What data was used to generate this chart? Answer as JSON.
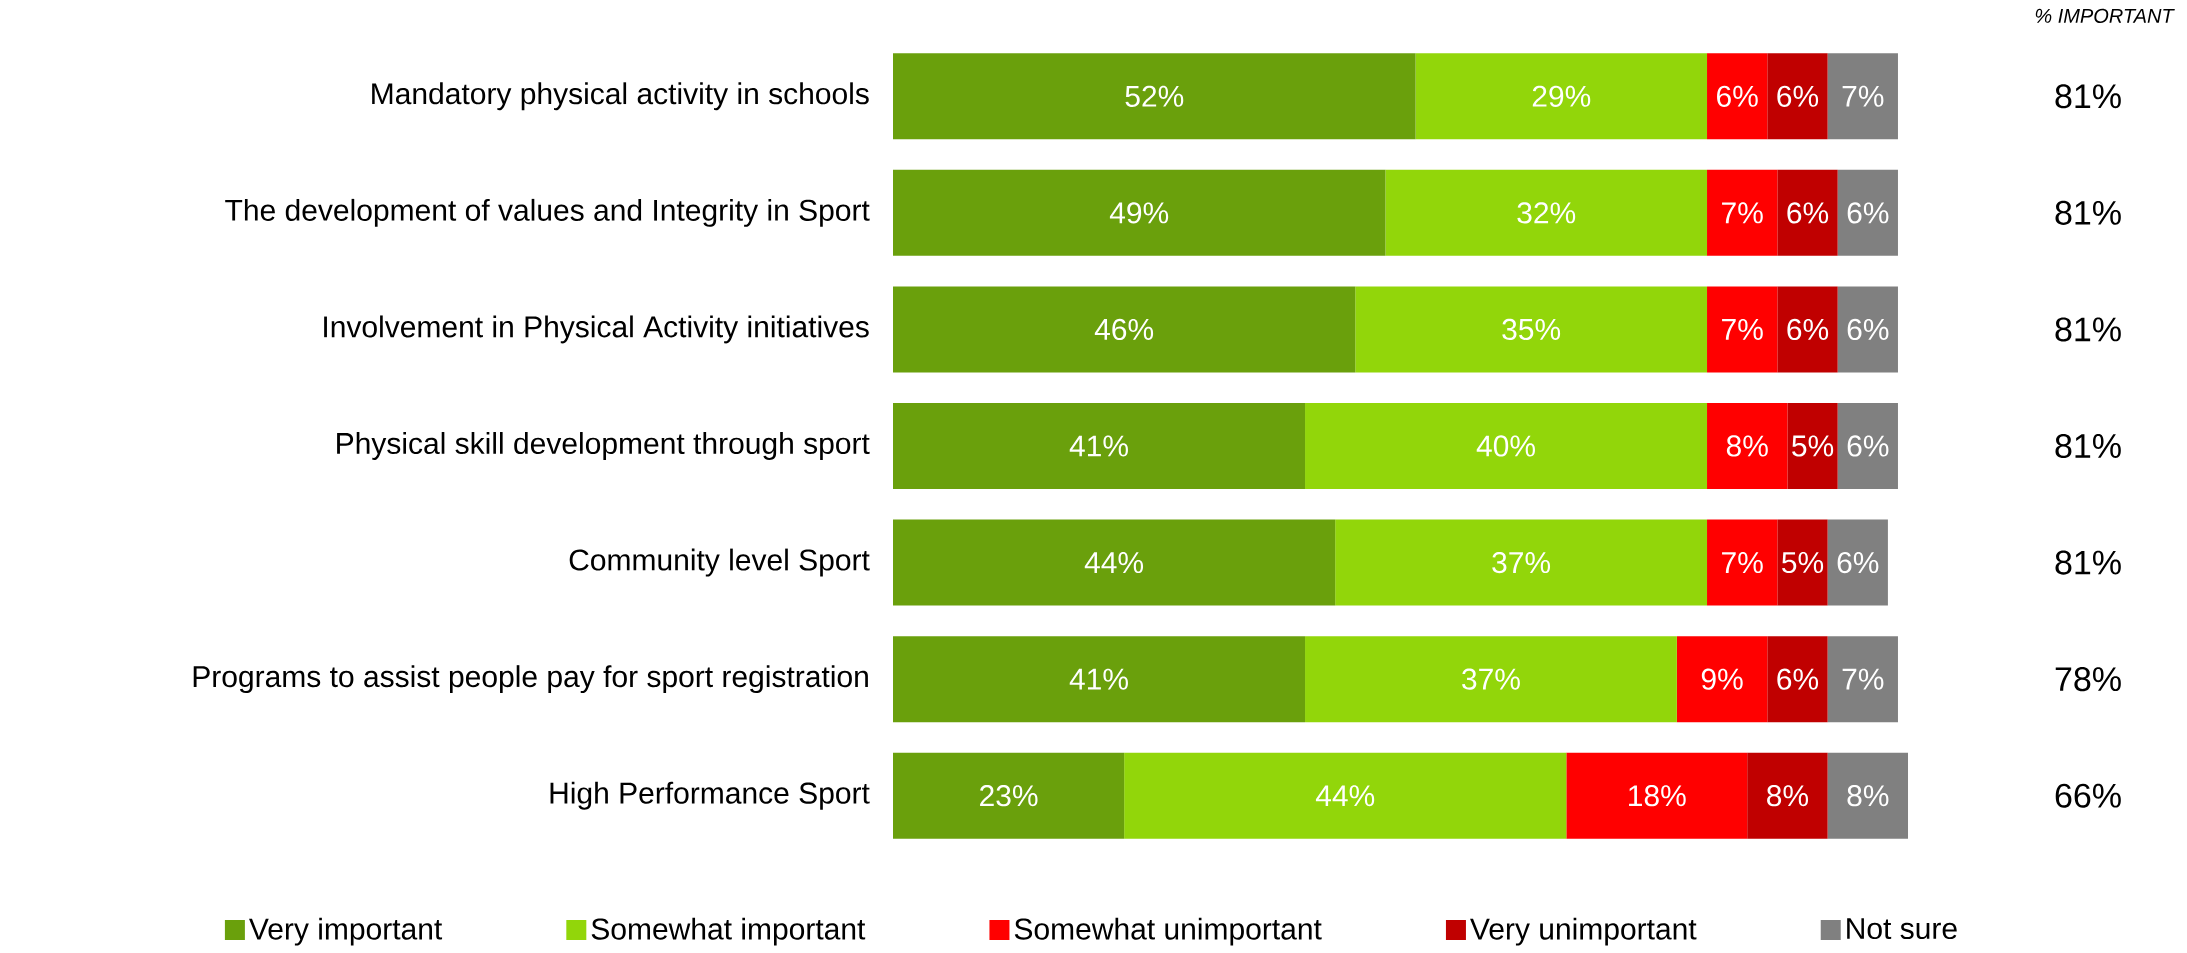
{
  "chart_data": {
    "type": "bar",
    "orientation": "horizontal",
    "stacked": true,
    "legend": "bottom",
    "categories": [
      "Mandatory physical activity in schools",
      "The development of values and Integrity in Sport",
      "Involvement in Physical Activity initiatives",
      "Physical skill development through sport",
      "Community level Sport",
      "Programs to assist people pay for sport registration",
      "High Performance Sport"
    ],
    "series": [
      {
        "name": "Very important",
        "color": "#6aa00c",
        "values": [
          52,
          49,
          46,
          41,
          44,
          41,
          23
        ],
        "value_labels": [
          "52%",
          "49%",
          "46%",
          "41%",
          "44%",
          "41%",
          "23%"
        ]
      },
      {
        "name": "Somewhat important",
        "color": "#92d60a",
        "values": [
          29,
          32,
          35,
          40,
          37,
          37,
          44
        ],
        "value_labels": [
          "29%",
          "32%",
          "35%",
          "40%",
          "37%",
          "37%",
          "44%"
        ]
      },
      {
        "name": "Somewhat unimportant",
        "color": "#ff0000",
        "values": [
          6,
          7,
          7,
          8,
          7,
          9,
          18
        ],
        "value_labels": [
          "6%",
          "7%",
          "7%",
          "8%",
          "7%",
          "9%",
          "18%"
        ]
      },
      {
        "name": "Very unimportant",
        "color": "#c00000",
        "values": [
          6,
          6,
          6,
          5,
          5,
          6,
          8
        ],
        "value_labels": [
          "6%",
          "6%",
          "6%",
          "5%",
          "5%",
          "6%",
          "8%"
        ]
      },
      {
        "name": "Not sure",
        "color": "#808080",
        "values": [
          7,
          6,
          6,
          6,
          6,
          7,
          8
        ],
        "value_labels": [
          "7%",
          "6%",
          "6%",
          "6%",
          "6%",
          "7%",
          "8%"
        ]
      }
    ],
    "annotations": [
      "% IMPORTANT",
      "81%",
      "81%",
      "81%",
      "81%",
      "81%",
      "78%",
      "66%"
    ]
  }
}
